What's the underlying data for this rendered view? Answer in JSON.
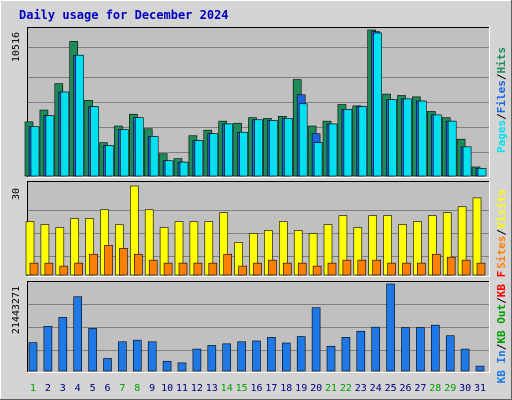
{
  "title": "Daily usage for December 2024",
  "colors": {
    "background": "#d4d4d4",
    "plot_bg": "#c0c0c0",
    "hits": "#1e8c5a",
    "files": "#1e64dc",
    "pages": "#00e0f0",
    "visits": "#ffff00",
    "sites": "#ff8000",
    "kbin": "#1e78e6",
    "kbout": "#00a000",
    "kbf": "#ff0000",
    "title_text": "#0000c0",
    "axis_text": "#000000"
  },
  "chart_data": [
    {
      "type": "bar",
      "name": "hits-files-pages",
      "ymax_label": "10516",
      "ymax": 10516,
      "legend": [
        {
          "label": "Hits",
          "color": "#1e8c5a"
        },
        {
          "label": "Files",
          "color": "#1e64dc"
        },
        {
          "label": "Pages",
          "color": "#00e0f0"
        }
      ],
      "categories": [
        "1",
        "2",
        "3",
        "4",
        "5",
        "6",
        "7",
        "8",
        "9",
        "10",
        "11",
        "12",
        "13",
        "14",
        "15",
        "16",
        "17",
        "18",
        "19",
        "20",
        "21",
        "22",
        "23",
        "24",
        "25",
        "26",
        "27",
        "28",
        "29",
        "30",
        "31"
      ],
      "series": [
        {
          "name": "Hits",
          "values": [
            3900,
            4750,
            6650,
            9700,
            5450,
            2400,
            3600,
            4450,
            3400,
            1600,
            1250,
            2900,
            3300,
            3950,
            3800,
            4200,
            4150,
            4300,
            6950,
            3600,
            3950,
            5150,
            5050,
            10516,
            5900,
            5800,
            5700,
            4650,
            4200,
            2650,
            650
          ]
        },
        {
          "name": "Files",
          "values": [
            3550,
            4350,
            6050,
            8700,
            5000,
            2200,
            3350,
            4200,
            2850,
            1100,
            1000,
            2550,
            3050,
            3750,
            3150,
            4050,
            4000,
            4150,
            5850,
            3050,
            3750,
            4800,
            5000,
            10400,
            5500,
            5550,
            5400,
            4400,
            3950,
            2100,
            550
          ]
        },
        {
          "name": "Pages",
          "values": [
            3550,
            4350,
            6050,
            8700,
            5000,
            2200,
            3350,
            4200,
            2850,
            1100,
            1000,
            2550,
            3050,
            3750,
            3150,
            4050,
            4000,
            4150,
            5200,
            2400,
            3750,
            4800,
            5000,
            10300,
            5500,
            5550,
            5400,
            4400,
            3950,
            2100,
            550
          ]
        }
      ]
    },
    {
      "type": "bar",
      "name": "visits-sites",
      "ymax_label": "30",
      "ymax": 30,
      "legend": [
        {
          "label": "Visits",
          "color": "#ffff00"
        },
        {
          "label": "Sites",
          "color": "#ff8000"
        }
      ],
      "categories": [
        "1",
        "2",
        "3",
        "4",
        "5",
        "6",
        "7",
        "8",
        "9",
        "10",
        "11",
        "12",
        "13",
        "14",
        "15",
        "16",
        "17",
        "18",
        "19",
        "20",
        "21",
        "22",
        "23",
        "24",
        "25",
        "26",
        "27",
        "28",
        "29",
        "30",
        "31"
      ],
      "series": [
        {
          "name": "Visits",
          "values": [
            18,
            17,
            16,
            19,
            19,
            22,
            17,
            30,
            22,
            16,
            18,
            18,
            18,
            21,
            11,
            14,
            15,
            18,
            15,
            14,
            17,
            20,
            16,
            20,
            20,
            17,
            18,
            20,
            21,
            23,
            26
          ]
        },
        {
          "name": "Sites",
          "values": [
            4,
            4,
            3,
            4,
            7,
            10,
            9,
            7,
            5,
            4,
            4,
            4,
            4,
            7,
            3,
            4,
            5,
            4,
            4,
            3,
            4,
            5,
            5,
            5,
            4,
            4,
            4,
            7,
            6,
            5,
            4
          ]
        }
      ]
    },
    {
      "type": "bar",
      "name": "kbytes",
      "ymax_label": "21443271",
      "ymax": 21443271,
      "legend": [
        {
          "label": "KB F",
          "color": "#ff0000"
        },
        {
          "label": "KB Out",
          "color": "#00a000"
        },
        {
          "label": "KB In",
          "color": "#1e78e6"
        }
      ],
      "categories": [
        "1",
        "2",
        "3",
        "4",
        "5",
        "6",
        "7",
        "8",
        "9",
        "10",
        "11",
        "12",
        "13",
        "14",
        "15",
        "16",
        "17",
        "18",
        "19",
        "20",
        "21",
        "22",
        "23",
        "24",
        "25",
        "26",
        "27",
        "28",
        "29",
        "30",
        "31"
      ],
      "series": [
        {
          "name": "KB In",
          "values": [
            7000000,
            11000000,
            13200000,
            18300000,
            10500000,
            3100000,
            7200000,
            7600000,
            7200000,
            2400000,
            2000000,
            5400000,
            6300000,
            6700000,
            7200000,
            7400000,
            8300000,
            6900000,
            8500000,
            15600000,
            6100000,
            8300000,
            9800000,
            10800000,
            21443271,
            10700000,
            10700000,
            11300000,
            8700000,
            5400000,
            1200000
          ]
        }
      ]
    }
  ]
}
